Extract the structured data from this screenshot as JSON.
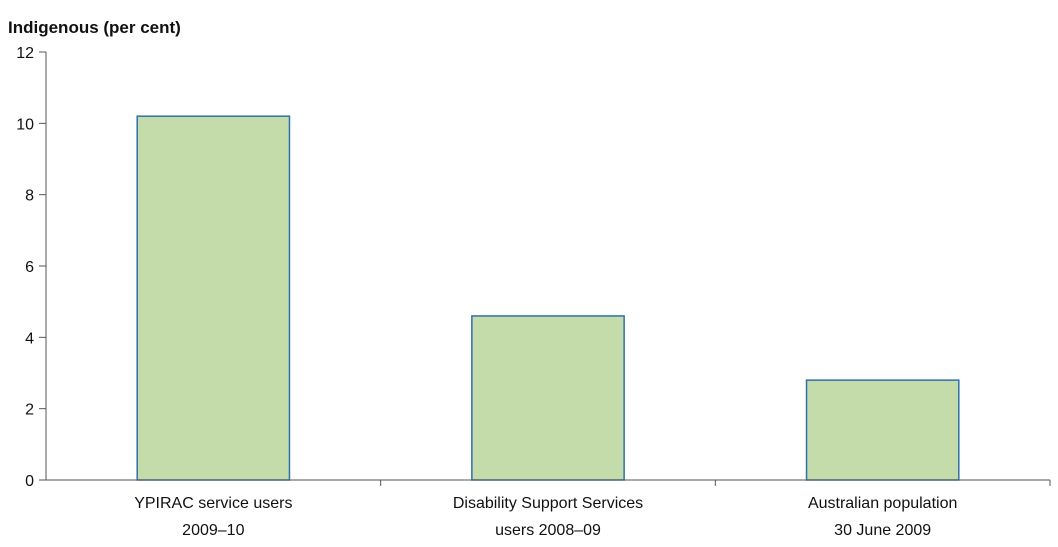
{
  "chart_data": {
    "type": "bar",
    "title": "",
    "ylabel": "Indigenous (per cent)",
    "xlabel": "",
    "ylim": [
      0,
      12
    ],
    "yticks": [
      0,
      2,
      4,
      6,
      8,
      10,
      12
    ],
    "categories": [
      [
        "YPIRAC service users",
        "2009–10"
      ],
      [
        "Disability Support Services",
        "users 2008–09"
      ],
      [
        "Australian population",
        "30 June 2009"
      ]
    ],
    "values": [
      10.2,
      4.6,
      2.8
    ],
    "grid": false,
    "colors": {
      "bar_fill": "#c4dcaa",
      "bar_stroke": "#2f6fad",
      "axis": "#555555"
    }
  }
}
